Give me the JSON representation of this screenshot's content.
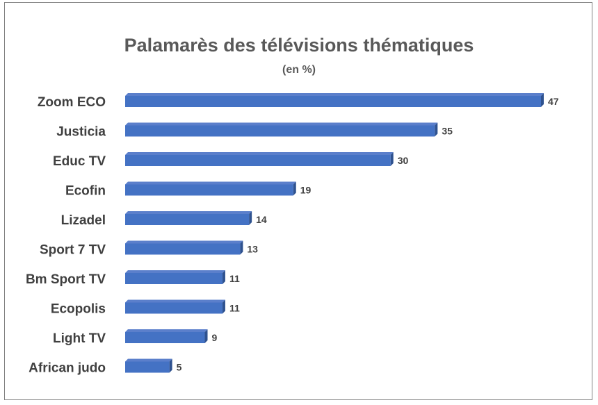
{
  "chart_data": {
    "type": "bar",
    "orientation": "horizontal",
    "title": "Palamarès des télévisions thématiques",
    "subtitle": "(en %)",
    "categories": [
      "Zoom ECO",
      "Justicia",
      "Educ TV",
      "Ecofin",
      "Lizadel",
      "Sport 7 TV",
      "Bm Sport TV",
      "Ecopolis",
      "Light TV",
      "African judo"
    ],
    "values": [
      47,
      35,
      30,
      19,
      14,
      13,
      11,
      11,
      9,
      5
    ],
    "xlim": [
      0,
      47
    ],
    "grid": false,
    "legend": "none",
    "bar_color": "#4472C4",
    "bar_side_color": "#2F528F",
    "bar_top_color": "#5B7FCB"
  }
}
